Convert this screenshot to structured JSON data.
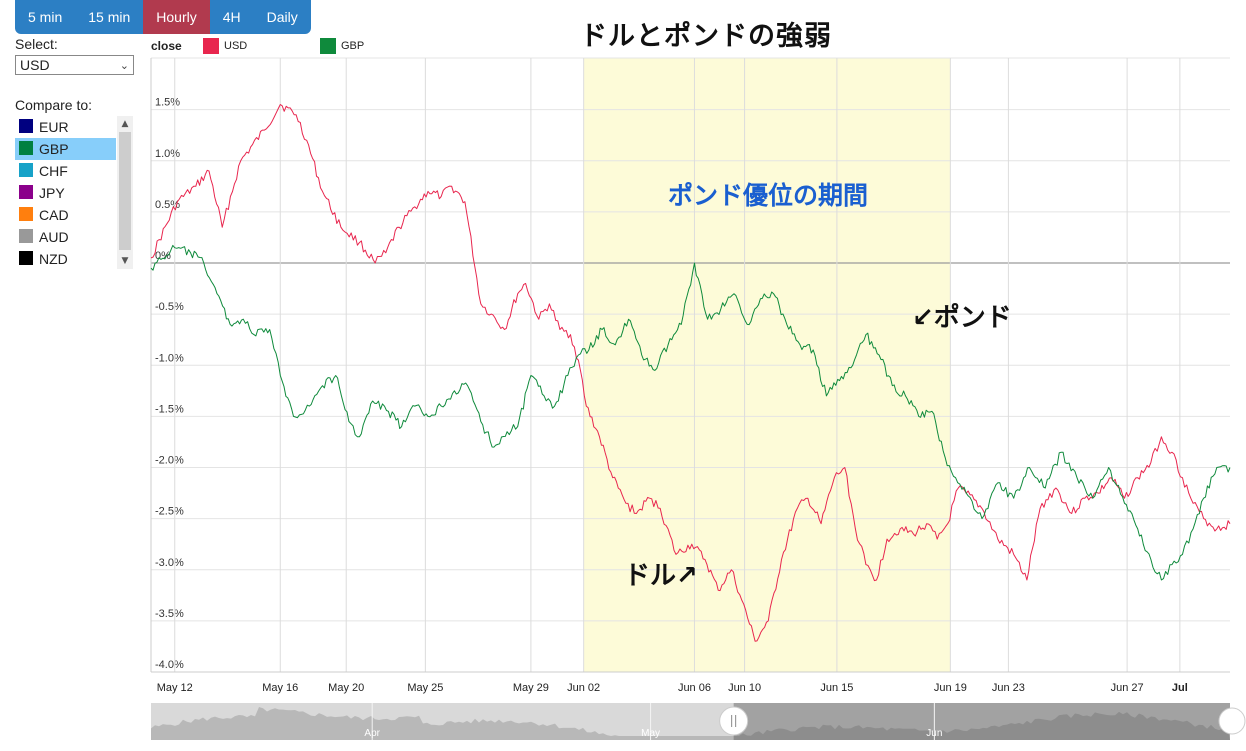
{
  "timeframes": [
    {
      "label": "5 min",
      "active": false
    },
    {
      "label": "15 min",
      "active": false
    },
    {
      "label": "Hourly",
      "active": true
    },
    {
      "label": "4H",
      "active": false
    },
    {
      "label": "Daily",
      "active": false
    }
  ],
  "select": {
    "label": "Select:",
    "value": "USD"
  },
  "compare": {
    "label": "Compare to:",
    "items": [
      {
        "label": "EUR",
        "color": "#000080",
        "selected": false
      },
      {
        "label": "GBP",
        "color": "#008040",
        "selected": true
      },
      {
        "label": "CHF",
        "color": "#17a2c8",
        "selected": false
      },
      {
        "label": "JPY",
        "color": "#8b008b",
        "selected": false
      },
      {
        "label": "CAD",
        "color": "#ff7f0e",
        "selected": false
      },
      {
        "label": "AUD",
        "color": "#999999",
        "selected": false
      },
      {
        "label": "NZD",
        "color": "#000000",
        "selected": false
      }
    ]
  },
  "legend": {
    "title": "close"
  },
  "annotations": {
    "title": "ドルとポンドの強弱",
    "highlight_label": "ポンド優位の期間",
    "pound_label": "ポンド",
    "dollar_label": "ドル",
    "arrow_pound": "↙",
    "arrow_dollar": "↗"
  },
  "chart_data": {
    "type": "line",
    "ylim": [
      -4.0,
      2.0
    ],
    "ylabel": "",
    "xlabel": "",
    "y_ticks": [
      "1.5%",
      "1.0%",
      "0.5%",
      "0%",
      "-0.5%",
      "-1.0%",
      "-1.5%",
      "-2.0%",
      "-2.5%",
      "-3.0%",
      "-3.5%",
      "-4.0%"
    ],
    "x_ticks": [
      {
        "label": "May 12",
        "day": 0,
        "bold": false
      },
      {
        "label": "May 16",
        "day": 4,
        "bold": false
      },
      {
        "label": "May 20",
        "day": 6.5,
        "bold": false
      },
      {
        "label": "May 25",
        "day": 9.5,
        "bold": false
      },
      {
        "label": "May 29",
        "day": 13.5,
        "bold": false
      },
      {
        "label": "Jun 02",
        "day": 15.5,
        "bold": false
      },
      {
        "label": "Jun 06",
        "day": 19.7,
        "bold": false
      },
      {
        "label": "Jun 10",
        "day": 21.6,
        "bold": false
      },
      {
        "label": "Jun 15",
        "day": 25.1,
        "bold": false
      },
      {
        "label": "Jun 19",
        "day": 29.4,
        "bold": false
      },
      {
        "label": "Jun 23",
        "day": 31.6,
        "bold": false
      },
      {
        "label": "Jun 27",
        "day": 36.1,
        "bold": false
      },
      {
        "label": "Jul",
        "day": 38.1,
        "bold": true
      }
    ],
    "x_range": [
      -0.9,
      40.0
    ],
    "highlight_range": [
      15.5,
      29.4
    ],
    "navigator_labels": [
      {
        "label": "Apr",
        "frac": 0.205
      },
      {
        "label": "May",
        "frac": 0.463
      },
      {
        "label": "Jun",
        "frac": 0.726
      }
    ],
    "series": [
      {
        "name": "USD",
        "color": "#e8264e",
        "x": [
          -0.9,
          0.1,
          0.8,
          1.3,
          1.8,
          2.5,
          3.4,
          4.0,
          4.6,
          5.0,
          5.6,
          6.3,
          7.0,
          7.6,
          8.0,
          8.5,
          9.1,
          9.6,
          10.1,
          10.5,
          11.0,
          11.6,
          12.0,
          12.5,
          13.0,
          13.3,
          13.8,
          14.2,
          14.6,
          15.0,
          15.3,
          15.6,
          16.1,
          16.6,
          17.1,
          17.5,
          18.0,
          18.4,
          19.0,
          19.6,
          20.1,
          20.6,
          21.1,
          21.5,
          22.0,
          22.5,
          23.0,
          23.6,
          24.0,
          24.5,
          25.0,
          25.4,
          25.8,
          26.2,
          26.6,
          27.0,
          27.5,
          28.0,
          28.5,
          28.9,
          29.3,
          29.7,
          30.0,
          30.6,
          31.2,
          31.8,
          32.3,
          32.8,
          33.4,
          34.0,
          34.5,
          35.0,
          35.5,
          36.0,
          36.5,
          37.0,
          37.4,
          37.8,
          38.2,
          38.6,
          39.0,
          39.5,
          40.0
        ],
        "y": [
          0.05,
          0.6,
          0.75,
          0.9,
          0.35,
          1.0,
          1.3,
          1.55,
          1.45,
          1.2,
          0.7,
          0.35,
          0.2,
          0.0,
          0.1,
          0.35,
          0.55,
          0.7,
          0.65,
          0.75,
          0.6,
          -0.4,
          -0.5,
          -0.65,
          -0.3,
          -0.2,
          -0.55,
          -0.4,
          -0.65,
          -0.7,
          -0.95,
          -1.4,
          -1.7,
          -2.1,
          -2.35,
          -2.45,
          -2.3,
          -2.4,
          -2.85,
          -2.75,
          -2.9,
          -3.2,
          -3.0,
          -3.3,
          -3.7,
          -3.5,
          -2.9,
          -2.4,
          -2.3,
          -2.55,
          -2.1,
          -2.0,
          -2.6,
          -2.95,
          -3.1,
          -2.7,
          -2.6,
          -2.65,
          -2.55,
          -2.7,
          -2.55,
          -2.2,
          -2.25,
          -2.4,
          -2.7,
          -2.85,
          -3.1,
          -2.4,
          -2.2,
          -2.45,
          -2.3,
          -2.25,
          -2.1,
          -2.3,
          -2.1,
          -1.95,
          -1.7,
          -1.85,
          -2.1,
          -2.35,
          -2.5,
          -2.6,
          -2.55
        ]
      },
      {
        "name": "GBP",
        "color": "#0f8a3c",
        "x": [
          -0.9,
          0.0,
          0.6,
          1.1,
          1.6,
          2.1,
          2.6,
          3.0,
          3.6,
          4.0,
          4.5,
          5.1,
          5.6,
          6.1,
          6.6,
          7.0,
          7.5,
          8.1,
          8.6,
          9.1,
          9.6,
          10.1,
          10.6,
          11.1,
          11.6,
          12.1,
          12.6,
          13.0,
          13.5,
          14.0,
          14.4,
          14.9,
          15.3,
          15.7,
          16.2,
          16.7,
          17.2,
          17.7,
          18.2,
          18.7,
          19.2,
          19.7,
          20.2,
          20.7,
          21.2,
          21.7,
          22.2,
          22.7,
          23.2,
          23.7,
          24.2,
          24.7,
          25.2,
          25.7,
          26.2,
          26.7,
          27.2,
          27.7,
          28.2,
          28.7,
          29.2,
          29.6,
          30.0,
          30.6,
          31.2,
          31.8,
          32.4,
          33.0,
          33.6,
          34.2,
          34.8,
          35.4,
          36.0,
          36.5,
          37.0,
          37.4,
          37.8,
          38.2,
          38.6,
          39.0,
          39.5,
          40.0
        ],
        "y": [
          -0.05,
          0.15,
          0.1,
          0.0,
          -0.3,
          -0.6,
          -0.55,
          -0.7,
          -0.65,
          -1.1,
          -1.5,
          -1.4,
          -1.2,
          -1.1,
          -1.55,
          -1.7,
          -1.35,
          -1.45,
          -1.6,
          -1.4,
          -1.5,
          -1.4,
          -1.25,
          -1.2,
          -1.55,
          -1.8,
          -1.65,
          -1.6,
          -1.1,
          -1.3,
          -1.4,
          -1.1,
          -0.9,
          -0.85,
          -0.65,
          -0.8,
          -0.55,
          -0.9,
          -1.05,
          -0.8,
          -0.6,
          0.0,
          -0.55,
          -0.45,
          -0.3,
          -0.6,
          -0.35,
          -0.3,
          -0.6,
          -0.8,
          -0.85,
          -1.3,
          -1.15,
          -1.0,
          -0.7,
          -0.9,
          -1.2,
          -1.3,
          -1.5,
          -1.45,
          -1.9,
          -2.1,
          -2.25,
          -2.5,
          -2.15,
          -2.3,
          -2.0,
          -2.2,
          -1.85,
          -2.1,
          -2.3,
          -2.0,
          -2.35,
          -2.6,
          -2.9,
          -3.1,
          -2.95,
          -2.85,
          -2.6,
          -2.3,
          -2.0,
          -2.0
        ]
      }
    ]
  }
}
